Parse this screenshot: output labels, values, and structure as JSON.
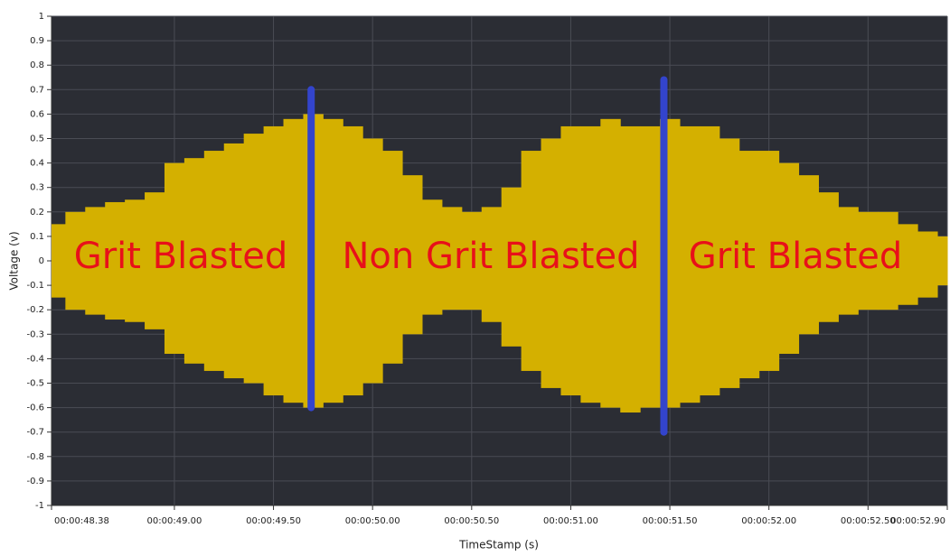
{
  "chart_data": {
    "type": "envelope",
    "ylabel": "Voltage (v)",
    "xlabel": "TimeStamp (s)",
    "xlim": [
      48.38,
      52.9
    ],
    "ylim": [
      -1,
      1
    ],
    "xticks": [
      {
        "value": 48.38,
        "label": "00:00:48.38"
      },
      {
        "value": 49.0,
        "label": "00:00:49.00"
      },
      {
        "value": 49.5,
        "label": "00:00:49.50"
      },
      {
        "value": 50.0,
        "label": "00:00:50.00"
      },
      {
        "value": 50.5,
        "label": "00:00:50.50"
      },
      {
        "value": 51.0,
        "label": "00:00:51.00"
      },
      {
        "value": 51.5,
        "label": "00:00:51.50"
      },
      {
        "value": 52.0,
        "label": "00:00:52.00"
      },
      {
        "value": 52.5,
        "label": "00:00:52.50"
      },
      {
        "value": 52.9,
        "label": "00:00:52.90"
      }
    ],
    "yticks": [
      -1,
      -0.9,
      -0.8,
      -0.7,
      -0.6,
      -0.5,
      -0.4,
      -0.3,
      -0.2,
      -0.1,
      0,
      0.1,
      0.2,
      0.3,
      0.4,
      0.5,
      0.6,
      0.7,
      0.8,
      0.9,
      1
    ],
    "grid": true,
    "color": "#d4b000",
    "x": [
      48.4,
      48.5,
      48.6,
      48.7,
      48.8,
      48.9,
      49.0,
      49.1,
      49.2,
      49.3,
      49.4,
      49.5,
      49.6,
      49.7,
      49.8,
      49.9,
      50.0,
      50.1,
      50.2,
      50.3,
      50.4,
      50.5,
      50.6,
      50.7,
      50.8,
      50.9,
      51.0,
      51.1,
      51.2,
      51.3,
      51.4,
      51.5,
      51.6,
      51.7,
      51.8,
      51.9,
      52.0,
      52.1,
      52.2,
      52.3,
      52.4,
      52.5,
      52.6,
      52.7,
      52.8,
      52.9
    ],
    "upper": [
      0.15,
      0.2,
      0.22,
      0.24,
      0.25,
      0.28,
      0.4,
      0.42,
      0.45,
      0.48,
      0.52,
      0.55,
      0.58,
      0.6,
      0.58,
      0.55,
      0.5,
      0.45,
      0.35,
      0.25,
      0.22,
      0.2,
      0.22,
      0.3,
      0.45,
      0.5,
      0.55,
      0.55,
      0.58,
      0.55,
      0.55,
      0.58,
      0.55,
      0.55,
      0.5,
      0.45,
      0.45,
      0.4,
      0.35,
      0.28,
      0.22,
      0.2,
      0.2,
      0.15,
      0.12,
      0.1
    ],
    "lower": [
      -0.15,
      -0.2,
      -0.22,
      -0.24,
      -0.25,
      -0.28,
      -0.38,
      -0.42,
      -0.45,
      -0.48,
      -0.5,
      -0.55,
      -0.58,
      -0.6,
      -0.58,
      -0.55,
      -0.5,
      -0.42,
      -0.3,
      -0.22,
      -0.2,
      -0.2,
      -0.25,
      -0.35,
      -0.45,
      -0.52,
      -0.55,
      -0.58,
      -0.6,
      -0.62,
      -0.6,
      -0.6,
      -0.58,
      -0.55,
      -0.52,
      -0.48,
      -0.45,
      -0.38,
      -0.3,
      -0.25,
      -0.22,
      -0.2,
      -0.2,
      -0.18,
      -0.15,
      -0.1
    ],
    "marker_color": "#3344cc",
    "markers": [
      {
        "x": 49.69,
        "top": 0.7,
        "bottom": -0.6
      },
      {
        "x": 51.47,
        "top": 0.74,
        "bottom": -0.7
      }
    ],
    "annotations": [
      "Grit Blasted",
      "Non Grit Blasted",
      "Grit Blasted"
    ]
  }
}
